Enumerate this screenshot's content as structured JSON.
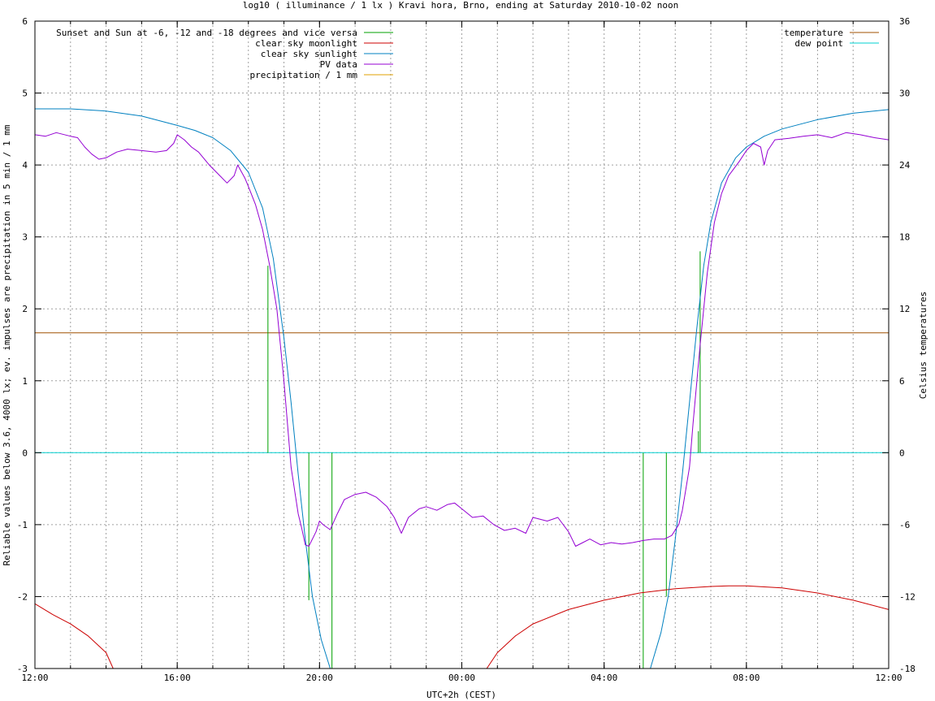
{
  "chart_data": {
    "type": "line",
    "title": "log10 ( illuminance / 1 lx ) Kravi hora, Brno, ending at Saturday 2010-10-02 noon",
    "xlabel": "UTC+2h (CEST)",
    "ylabel": "Reliable values below 3.6, 4000 lx; ev. impulses are precipitation in 5 min / 1 mm",
    "y2label": "Celsius temperatures",
    "xlim": [
      0,
      24
    ],
    "ylim": [
      -3,
      6
    ],
    "y2lim": [
      -18,
      36
    ],
    "x_ticks": [
      {
        "x": 0,
        "label": "12:00"
      },
      {
        "x": 4,
        "label": "16:00"
      },
      {
        "x": 8,
        "label": "20:00"
      },
      {
        "x": 12,
        "label": "00:00"
      },
      {
        "x": 16,
        "label": "04:00"
      },
      {
        "x": 20,
        "label": "08:00"
      },
      {
        "x": 24,
        "label": "12:00"
      }
    ],
    "x_minor_step": 1,
    "y_ticks": [
      -3,
      -2,
      -1,
      0,
      1,
      2,
      3,
      4,
      5,
      6
    ],
    "y2_ticks": [
      -18,
      -12,
      -6,
      0,
      6,
      12,
      18,
      24,
      30,
      36
    ],
    "grid": true,
    "legend_left": [
      {
        "name": "Sunset and Sun at -6, -12 and -18 degrees and vice versa",
        "color": "#00a000"
      },
      {
        "name": "clear sky moonlight",
        "color": "#cc0000"
      },
      {
        "name": "clear sky sunlight",
        "color": "#0080c0"
      },
      {
        "name": "PV data",
        "color": "#9400d3"
      },
      {
        "name": "precipitation / 1 mm",
        "color": "#e0a000"
      }
    ],
    "legend_right": [
      {
        "name": "temperature",
        "color": "#a05000"
      },
      {
        "name": "dew point",
        "color": "#00d0d0"
      }
    ],
    "series": [
      {
        "name": "Sunset and Sun at -6, -12 and -18 degrees and vice versa",
        "type": "impulse",
        "color": "#00a000",
        "points": [
          [
            6.55,
            2.6
          ],
          [
            7.7,
            -2.05
          ],
          [
            8.35,
            -3
          ],
          [
            17.1,
            -3
          ],
          [
            17.75,
            -2.0
          ],
          [
            18.65,
            0.3
          ],
          [
            18.7,
            2.8
          ]
        ]
      },
      {
        "name": "clear sky moonlight",
        "color": "#cc0000",
        "points": [
          [
            0.0,
            -2.1
          ],
          [
            0.5,
            -2.25
          ],
          [
            1.0,
            -2.38
          ],
          [
            1.5,
            -2.55
          ],
          [
            2.0,
            -2.78
          ],
          [
            2.2,
            -3.0
          ],
          [
            12.7,
            -3.0
          ],
          [
            13.0,
            -2.78
          ],
          [
            13.5,
            -2.55
          ],
          [
            14.0,
            -2.38
          ],
          [
            15.0,
            -2.18
          ],
          [
            16.0,
            -2.05
          ],
          [
            17.0,
            -1.95
          ],
          [
            18.0,
            -1.89
          ],
          [
            19.0,
            -1.86
          ],
          [
            19.5,
            -1.85
          ],
          [
            20.0,
            -1.85
          ],
          [
            21.0,
            -1.88
          ],
          [
            22.0,
            -1.95
          ],
          [
            23.0,
            -2.05
          ],
          [
            24.0,
            -2.18
          ]
        ]
      },
      {
        "name": "clear sky sunlight",
        "color": "#0080c0",
        "points": [
          [
            0.0,
            4.78
          ],
          [
            1.0,
            4.78
          ],
          [
            2.0,
            4.75
          ],
          [
            3.0,
            4.68
          ],
          [
            4.0,
            4.55
          ],
          [
            4.5,
            4.48
          ],
          [
            5.0,
            4.38
          ],
          [
            5.5,
            4.2
          ],
          [
            6.0,
            3.9
          ],
          [
            6.4,
            3.4
          ],
          [
            6.7,
            2.7
          ],
          [
            7.0,
            1.6
          ],
          [
            7.2,
            0.7
          ],
          [
            7.4,
            -0.3
          ],
          [
            7.6,
            -1.2
          ],
          [
            7.8,
            -2.0
          ],
          [
            8.05,
            -2.6
          ],
          [
            8.3,
            -3.0
          ],
          [
            17.3,
            -3.0
          ],
          [
            17.6,
            -2.5
          ],
          [
            17.8,
            -2.0
          ],
          [
            18.0,
            -1.2
          ],
          [
            18.2,
            -0.3
          ],
          [
            18.4,
            0.7
          ],
          [
            18.6,
            1.7
          ],
          [
            18.8,
            2.6
          ],
          [
            19.0,
            3.2
          ],
          [
            19.3,
            3.75
          ],
          [
            19.7,
            4.1
          ],
          [
            20.0,
            4.25
          ],
          [
            20.5,
            4.4
          ],
          [
            21.0,
            4.5
          ],
          [
            22.0,
            4.63
          ],
          [
            23.0,
            4.72
          ],
          [
            24.0,
            4.77
          ]
        ]
      },
      {
        "name": "PV data",
        "color": "#9400d3",
        "points": [
          [
            0.0,
            4.42
          ],
          [
            0.3,
            4.4
          ],
          [
            0.6,
            4.45
          ],
          [
            1.0,
            4.4
          ],
          [
            1.2,
            4.38
          ],
          [
            1.4,
            4.25
          ],
          [
            1.6,
            4.15
          ],
          [
            1.8,
            4.08
          ],
          [
            2.0,
            4.1
          ],
          [
            2.3,
            4.18
          ],
          [
            2.6,
            4.22
          ],
          [
            3.0,
            4.2
          ],
          [
            3.4,
            4.18
          ],
          [
            3.7,
            4.2
          ],
          [
            3.9,
            4.3
          ],
          [
            4.0,
            4.42
          ],
          [
            4.2,
            4.35
          ],
          [
            4.4,
            4.25
          ],
          [
            4.6,
            4.18
          ],
          [
            4.9,
            4.0
          ],
          [
            5.2,
            3.85
          ],
          [
            5.4,
            3.75
          ],
          [
            5.6,
            3.85
          ],
          [
            5.7,
            4.0
          ],
          [
            5.9,
            3.82
          ],
          [
            6.0,
            3.7
          ],
          [
            6.2,
            3.45
          ],
          [
            6.4,
            3.1
          ],
          [
            6.6,
            2.6
          ],
          [
            6.8,
            2.0
          ],
          [
            7.0,
            1.0
          ],
          [
            7.2,
            -0.2
          ],
          [
            7.4,
            -0.85
          ],
          [
            7.5,
            -1.05
          ],
          [
            7.6,
            -1.28
          ],
          [
            7.7,
            -1.3
          ],
          [
            7.9,
            -1.1
          ],
          [
            8.0,
            -0.95
          ],
          [
            8.1,
            -1.0
          ],
          [
            8.3,
            -1.07
          ],
          [
            8.5,
            -0.85
          ],
          [
            8.7,
            -0.65
          ],
          [
            9.0,
            -0.58
          ],
          [
            9.3,
            -0.55
          ],
          [
            9.6,
            -0.62
          ],
          [
            9.9,
            -0.75
          ],
          [
            10.1,
            -0.9
          ],
          [
            10.3,
            -1.12
          ],
          [
            10.5,
            -0.9
          ],
          [
            10.8,
            -0.78
          ],
          [
            11.0,
            -0.75
          ],
          [
            11.3,
            -0.8
          ],
          [
            11.6,
            -0.72
          ],
          [
            11.8,
            -0.7
          ],
          [
            12.0,
            -0.78
          ],
          [
            12.3,
            -0.9
          ],
          [
            12.6,
            -0.88
          ],
          [
            12.9,
            -1.0
          ],
          [
            13.2,
            -1.08
          ],
          [
            13.5,
            -1.05
          ],
          [
            13.8,
            -1.12
          ],
          [
            14.0,
            -0.9
          ],
          [
            14.4,
            -0.95
          ],
          [
            14.7,
            -0.9
          ],
          [
            15.0,
            -1.1
          ],
          [
            15.2,
            -1.3
          ],
          [
            15.4,
            -1.25
          ],
          [
            15.6,
            -1.2
          ],
          [
            15.9,
            -1.28
          ],
          [
            16.2,
            -1.25
          ],
          [
            16.5,
            -1.27
          ],
          [
            16.8,
            -1.25
          ],
          [
            17.1,
            -1.22
          ],
          [
            17.4,
            -1.2
          ],
          [
            17.7,
            -1.2
          ],
          [
            17.9,
            -1.15
          ],
          [
            18.1,
            -1.0
          ],
          [
            18.2,
            -0.8
          ],
          [
            18.4,
            -0.2
          ],
          [
            18.5,
            0.4
          ],
          [
            18.7,
            1.5
          ],
          [
            18.9,
            2.5
          ],
          [
            19.1,
            3.2
          ],
          [
            19.3,
            3.6
          ],
          [
            19.5,
            3.85
          ],
          [
            19.8,
            4.05
          ],
          [
            20.0,
            4.2
          ],
          [
            20.2,
            4.3
          ],
          [
            20.4,
            4.25
          ],
          [
            20.5,
            4.0
          ],
          [
            20.6,
            4.2
          ],
          [
            20.8,
            4.35
          ],
          [
            21.2,
            4.37
          ],
          [
            21.6,
            4.4
          ],
          [
            22.0,
            4.42
          ],
          [
            22.4,
            4.38
          ],
          [
            22.8,
            4.45
          ],
          [
            23.2,
            4.42
          ],
          [
            23.6,
            4.38
          ],
          [
            24.0,
            4.35
          ]
        ]
      },
      {
        "name": "precipitation / 1 mm",
        "color": "#e0a000",
        "points": []
      },
      {
        "name": "temperature",
        "axis": "y2",
        "color": "#a05000",
        "points": [
          [
            0,
            10
          ],
          [
            24,
            10
          ]
        ]
      },
      {
        "name": "dew point",
        "axis": "y2",
        "color": "#00d0d0",
        "points": [
          [
            0,
            0
          ],
          [
            24,
            0
          ]
        ]
      }
    ]
  }
}
